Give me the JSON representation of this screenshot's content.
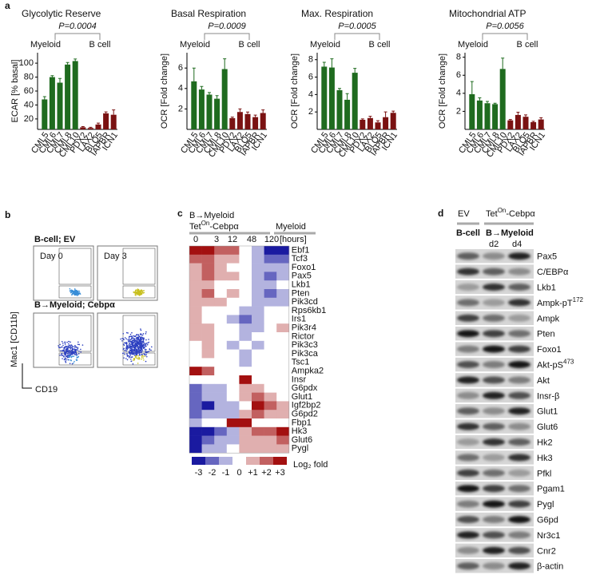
{
  "panels": [
    "a",
    "b",
    "c",
    "d"
  ],
  "chart_data": [
    {
      "type": "bar",
      "title": "Glycolytic Reserve",
      "ylabel": "ECAR [% basal]",
      "categories": [
        "CML5",
        "CML6",
        "CML7",
        "CML8",
        "CML10",
        "PDX2",
        "LAX2",
        "BLQ5",
        "IAPBR",
        "ICN1"
      ],
      "values": [
        48,
        80,
        72,
        98,
        103,
        8,
        7,
        12,
        28,
        26
      ],
      "errors": [
        4,
        2,
        6,
        3,
        3,
        1,
        1,
        2,
        2,
        7
      ],
      "colors": [
        "#1f6b1f",
        "#1f6b1f",
        "#1f6b1f",
        "#1f6b1f",
        "#1f6b1f",
        "#7a1212",
        "#7a1212",
        "#7a1212",
        "#7a1212",
        "#7a1212"
      ],
      "ylim": [
        5,
        115
      ],
      "yticks": [
        20,
        40,
        60,
        80,
        100
      ],
      "annotations": [
        {
          "text": "P=0.0004"
        },
        {
          "text": "Myeloid",
          "color": "#1f7a1f"
        },
        {
          "text": "B cell",
          "color": "#8b1a1a"
        }
      ]
    },
    {
      "type": "bar",
      "title": "Basal Respiration",
      "ylabel": "OCR [Fold change]",
      "categories": [
        "CML5",
        "CML6",
        "CML7",
        "CML8",
        "CML10",
        "PDX2",
        "LAX2",
        "BLQ5",
        "IAPBR",
        "ICN1"
      ],
      "values": [
        4.7,
        3.9,
        3.4,
        3.0,
        5.9,
        1.1,
        1.7,
        1.5,
        1.2,
        1.6
      ],
      "errors": [
        1.3,
        0.3,
        0.2,
        0.3,
        1.0,
        0.1,
        0.3,
        0.2,
        0.2,
        0.3
      ],
      "colors": [
        "#1f6b1f",
        "#1f6b1f",
        "#1f6b1f",
        "#1f6b1f",
        "#1f6b1f",
        "#7a1212",
        "#7a1212",
        "#7a1212",
        "#7a1212",
        "#7a1212"
      ],
      "ylim": [
        0,
        7.5
      ],
      "yticks": [
        2,
        4,
        6
      ],
      "annotations": [
        {
          "text": "P=0.0009"
        },
        {
          "text": "Myeloid",
          "color": "#1f7a1f"
        },
        {
          "text": "B cell",
          "color": "#8b1a1a"
        }
      ]
    },
    {
      "type": "bar",
      "title": "Max. Respiration",
      "ylabel": "OCR [Fold change]",
      "categories": [
        "CML5",
        "CML6",
        "CML7",
        "CML8",
        "CML10",
        "PDX2",
        "LAX2",
        "BLQ5",
        "IAPBR",
        "ICN1"
      ],
      "values": [
        7.2,
        7.1,
        4.5,
        3.4,
        6.5,
        1.1,
        1.3,
        0.8,
        1.4,
        1.9
      ],
      "errors": [
        0.5,
        1.0,
        0.2,
        0.7,
        0.5,
        0.1,
        0.2,
        0.2,
        0.6,
        0.2
      ],
      "colors": [
        "#1f6b1f",
        "#1f6b1f",
        "#1f6b1f",
        "#1f6b1f",
        "#1f6b1f",
        "#7a1212",
        "#7a1212",
        "#7a1212",
        "#7a1212",
        "#7a1212"
      ],
      "ylim": [
        0,
        8.8
      ],
      "yticks": [
        2,
        4,
        6,
        8
      ],
      "annotations": [
        {
          "text": "P=0.0005"
        },
        {
          "text": "Myeloid",
          "color": "#1f7a1f"
        },
        {
          "text": "B cell",
          "color": "#8b1a1a"
        }
      ]
    },
    {
      "type": "bar",
      "title": "Mitochondrial ATP",
      "ylabel": "OCR [Fold change]",
      "categories": [
        "CML5",
        "CML6",
        "CML7",
        "CML8",
        "CML10",
        "PDX2",
        "LAX2",
        "BLQ5",
        "IAPBR",
        "ICN1"
      ],
      "values": [
        3.9,
        3.2,
        2.9,
        2.8,
        6.7,
        1.0,
        1.6,
        1.4,
        0.8,
        1.1
      ],
      "errors": [
        1.4,
        0.3,
        0.2,
        0.1,
        1.2,
        0.1,
        0.3,
        0.2,
        0.1,
        0.2
      ],
      "colors": [
        "#1f6b1f",
        "#1f6b1f",
        "#1f6b1f",
        "#1f6b1f",
        "#1f6b1f",
        "#7a1212",
        "#7a1212",
        "#7a1212",
        "#7a1212",
        "#7a1212"
      ],
      "ylim": [
        0,
        8.5
      ],
      "yticks": [
        2,
        4,
        6,
        8
      ],
      "annotations": [
        {
          "text": "P=0.0056"
        },
        {
          "text": "Myeloid",
          "color": "#1f7a1f"
        },
        {
          "text": "B cell",
          "color": "#8b1a1a"
        }
      ]
    }
  ],
  "flow": {
    "top_label": "B-cell; EV",
    "bottom_label": "B→Myeloid; Cebpα",
    "days": [
      "Day 0",
      "Day 3"
    ],
    "y_axis": "Mac1 [CD11b]",
    "x_axis": "CD19"
  },
  "heatmap": {
    "header": [
      "B→Myeloid",
      {
        "text": "Tet",
        "sup": "On",
        "after": "-Cebpα"
      },
      "Myeloid"
    ],
    "hours": [
      0,
      3,
      12,
      48,
      120
    ],
    "hours_unit": "[hours]",
    "genes": [
      "Ebf1",
      "Tcf3",
      "Foxo1",
      "Pax5",
      "Lkb1",
      "Pten",
      "Pik3cd",
      "Rps6kb1",
      "Irs1",
      "Pik3r4",
      "Rictor",
      "Pik3c3",
      "Pik3ca",
      "Tsc1",
      "Ampka2",
      "Insr",
      "G6pdx",
      "Glut1",
      "Igf2bp2",
      "G6pd2",
      "Fbp1",
      "Hk3",
      "Glut6",
      "Pygl"
    ],
    "values": [
      [
        3,
        3,
        2,
        2,
        0,
        -1,
        -3,
        -3
      ],
      [
        2,
        2,
        1,
        1,
        0,
        -1,
        -2,
        -2
      ],
      [
        1,
        2,
        1,
        0,
        0,
        -1,
        -1,
        -1
      ],
      [
        1,
        2,
        1,
        1,
        0,
        -1,
        -2,
        -1
      ],
      [
        1,
        1,
        0,
        0,
        0,
        -1,
        -1,
        0
      ],
      [
        1,
        2,
        0,
        1,
        0,
        -1,
        -2,
        -1
      ],
      [
        1,
        1,
        1,
        0,
        0,
        -1,
        -1,
        -1
      ],
      [
        1,
        0,
        0,
        0,
        -1,
        -1,
        0,
        0
      ],
      [
        1,
        0,
        0,
        -1,
        -2,
        -1,
        0,
        0
      ],
      [
        1,
        1,
        0,
        0,
        -1,
        -1,
        0,
        1
      ],
      [
        1,
        1,
        0,
        0,
        -1,
        0,
        0,
        0
      ],
      [
        0,
        1,
        0,
        -1,
        0,
        -1,
        0,
        0
      ],
      [
        0,
        1,
        0,
        0,
        -1,
        0,
        0,
        0
      ],
      [
        0,
        0,
        0,
        0,
        -1,
        0,
        0,
        0
      ],
      [
        3,
        2,
        0,
        0,
        0,
        0,
        0,
        0
      ],
      [
        0,
        0,
        0,
        0,
        3,
        0,
        0,
        0
      ],
      [
        -2,
        -1,
        -1,
        0,
        1,
        1,
        0,
        0
      ],
      [
        -2,
        -1,
        -1,
        0,
        1,
        2,
        1,
        0
      ],
      [
        -2,
        -3,
        -1,
        -1,
        0,
        3,
        2,
        1
      ],
      [
        -2,
        -1,
        -1,
        -1,
        1,
        2,
        1,
        1
      ],
      [
        -1,
        0,
        0,
        3,
        3,
        0,
        0,
        0
      ],
      [
        -3,
        -3,
        -2,
        -1,
        1,
        2,
        2,
        3
      ],
      [
        -3,
        -2,
        -1,
        -1,
        1,
        1,
        1,
        2
      ],
      [
        -3,
        -1,
        -1,
        0,
        1,
        1,
        1,
        1
      ]
    ],
    "legend_ticks": [
      -3,
      -2,
      -1,
      0,
      {
        "value": 1,
        "label": "+1"
      },
      {
        "value": 2,
        "label": "+2"
      },
      {
        "value": 3,
        "label": "+3"
      }
    ],
    "legend_title": "Log₂ fold",
    "low_color": "#1a1aa0",
    "high_color": "#a31010"
  },
  "blot": {
    "header": [
      "EV",
      {
        "text": "Tet",
        "sup": "On",
        "after": "-Cebpα"
      }
    ],
    "groups": [
      {
        "text": "B-cell",
        "color": "#8b1a1a"
      },
      {
        "text": "B→Myeloid",
        "color": "#1f7a1f"
      }
    ],
    "days": [
      "d2",
      "d4"
    ],
    "proteins": [
      {
        "text": "Pax5"
      },
      {
        "text": "C/EBPα"
      },
      {
        "text": "Lkb1"
      },
      {
        "text": "Ampk-pT",
        "sup": "172"
      },
      {
        "text": "Ampk"
      },
      {
        "text": "Pten"
      },
      {
        "text": "Foxo1"
      },
      {
        "text": "Akt-pS",
        "sup": "473"
      },
      {
        "text": "Akt"
      },
      {
        "text": "Insr-β"
      },
      {
        "text": "Glut1"
      },
      {
        "text": "Glut6"
      },
      {
        "text": "Hk2"
      },
      {
        "text": "Hk3"
      },
      {
        "text": "Pfkl"
      },
      {
        "text": "Pgam1"
      },
      {
        "text": "Pygl"
      },
      {
        "text": "G6pd"
      },
      {
        "text": "Nr3c1"
      },
      {
        "text": "Cnr2"
      },
      {
        "text": "β-actin"
      }
    ]
  }
}
